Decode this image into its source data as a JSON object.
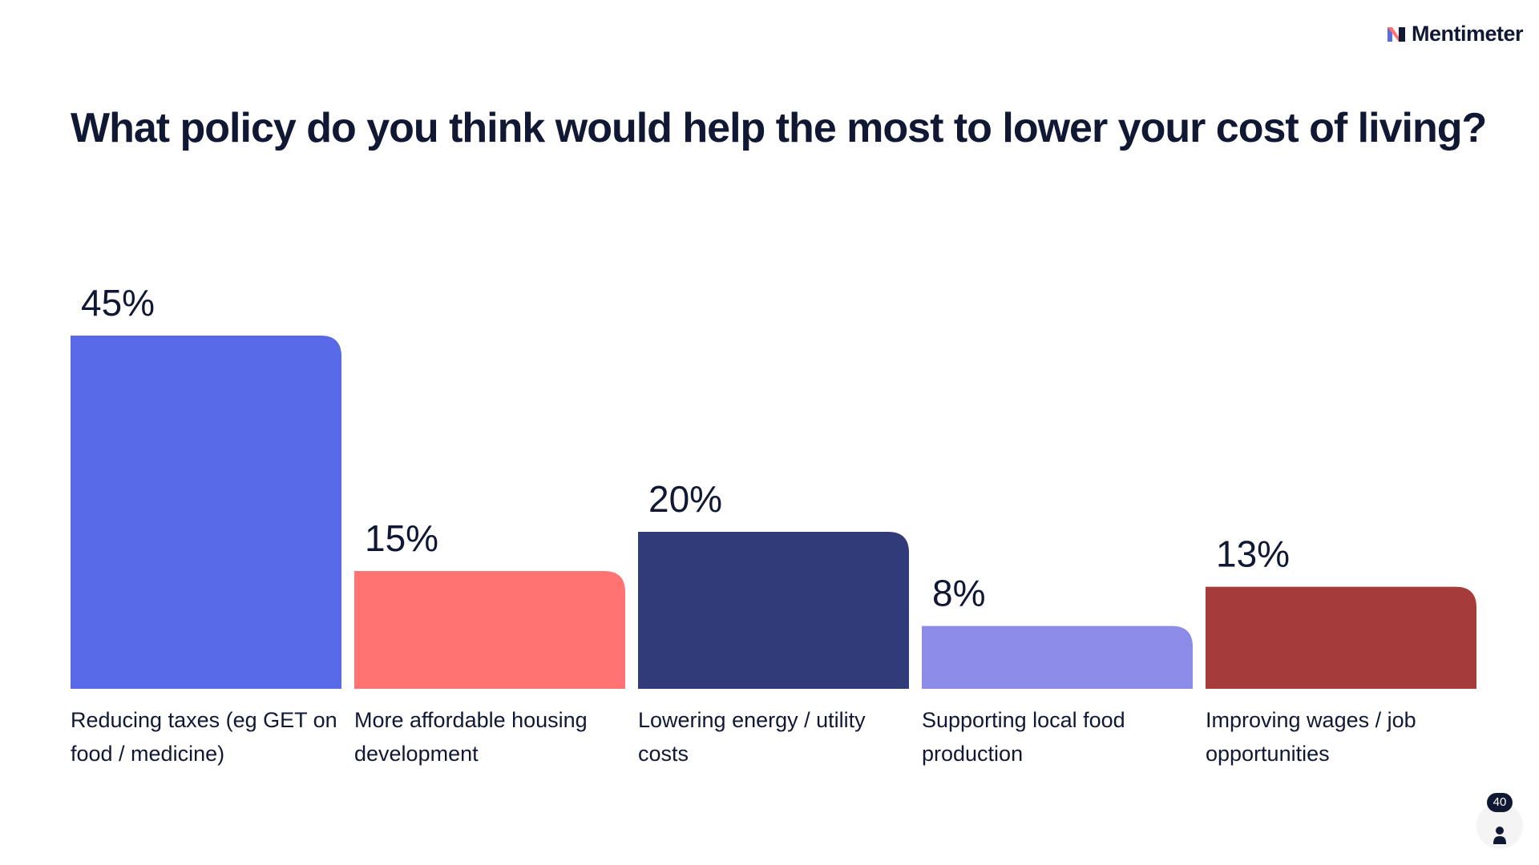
{
  "brand": {
    "name": "Mentimeter",
    "icon": "mentimeter-logo-icon",
    "logo_colors": [
      "#5b6be3",
      "#ff7373",
      "#101834"
    ]
  },
  "participants": {
    "count": "40",
    "icon": "person-icon"
  },
  "chart_data": {
    "type": "bar",
    "title": "What policy do you think would help the most to lower your cost of living?",
    "xlabel": "",
    "ylabel": "",
    "ylim": [
      0,
      45
    ],
    "grid": false,
    "categories": [
      "Reducing taxes (eg GET on food / medicine)",
      "More affordable housing development",
      "Lowering energy / utility costs",
      "Supporting local food production",
      "Improving wages / job opportunities"
    ],
    "values": [
      45,
      15,
      20,
      8,
      13
    ],
    "value_labels": [
      "45%",
      "15%",
      "20%",
      "8%",
      "13%"
    ],
    "colors": [
      "#5769e6",
      "#ff7373",
      "#323b7a",
      "#8c8ce8",
      "#a63b3b"
    ],
    "unit": "%"
  }
}
